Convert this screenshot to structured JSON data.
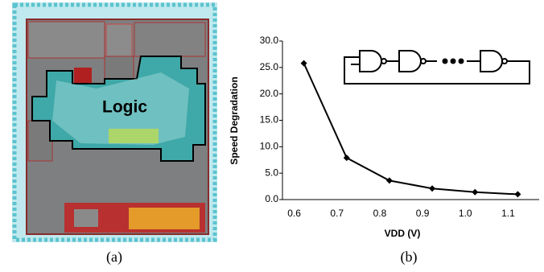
{
  "figure_a": {
    "label": "Logic",
    "caption": "(a)"
  },
  "chart_data": {
    "type": "line",
    "caption": "(b)",
    "x_label": "VDD (V)",
    "y_label": "Speed Degradation",
    "categories": [
      "0.6",
      "0.7",
      "0.8",
      "0.9",
      "1.0",
      "1.1"
    ],
    "values": [
      25.8,
      7.9,
      3.6,
      2.1,
      1.4,
      1.0
    ],
    "color": "#000000",
    "marker": "diamond",
    "ylim": [
      0,
      30
    ],
    "yticks": [
      {
        "value": 0,
        "label": "0.0"
      },
      {
        "value": 5,
        "label": "5.0"
      },
      {
        "value": 10,
        "label": "10.0"
      },
      {
        "value": 15,
        "label": "15.0"
      },
      {
        "value": 20,
        "label": "20.0"
      },
      {
        "value": 25,
        "label": "25.0"
      },
      {
        "value": 30,
        "label": "30.0"
      }
    ]
  }
}
